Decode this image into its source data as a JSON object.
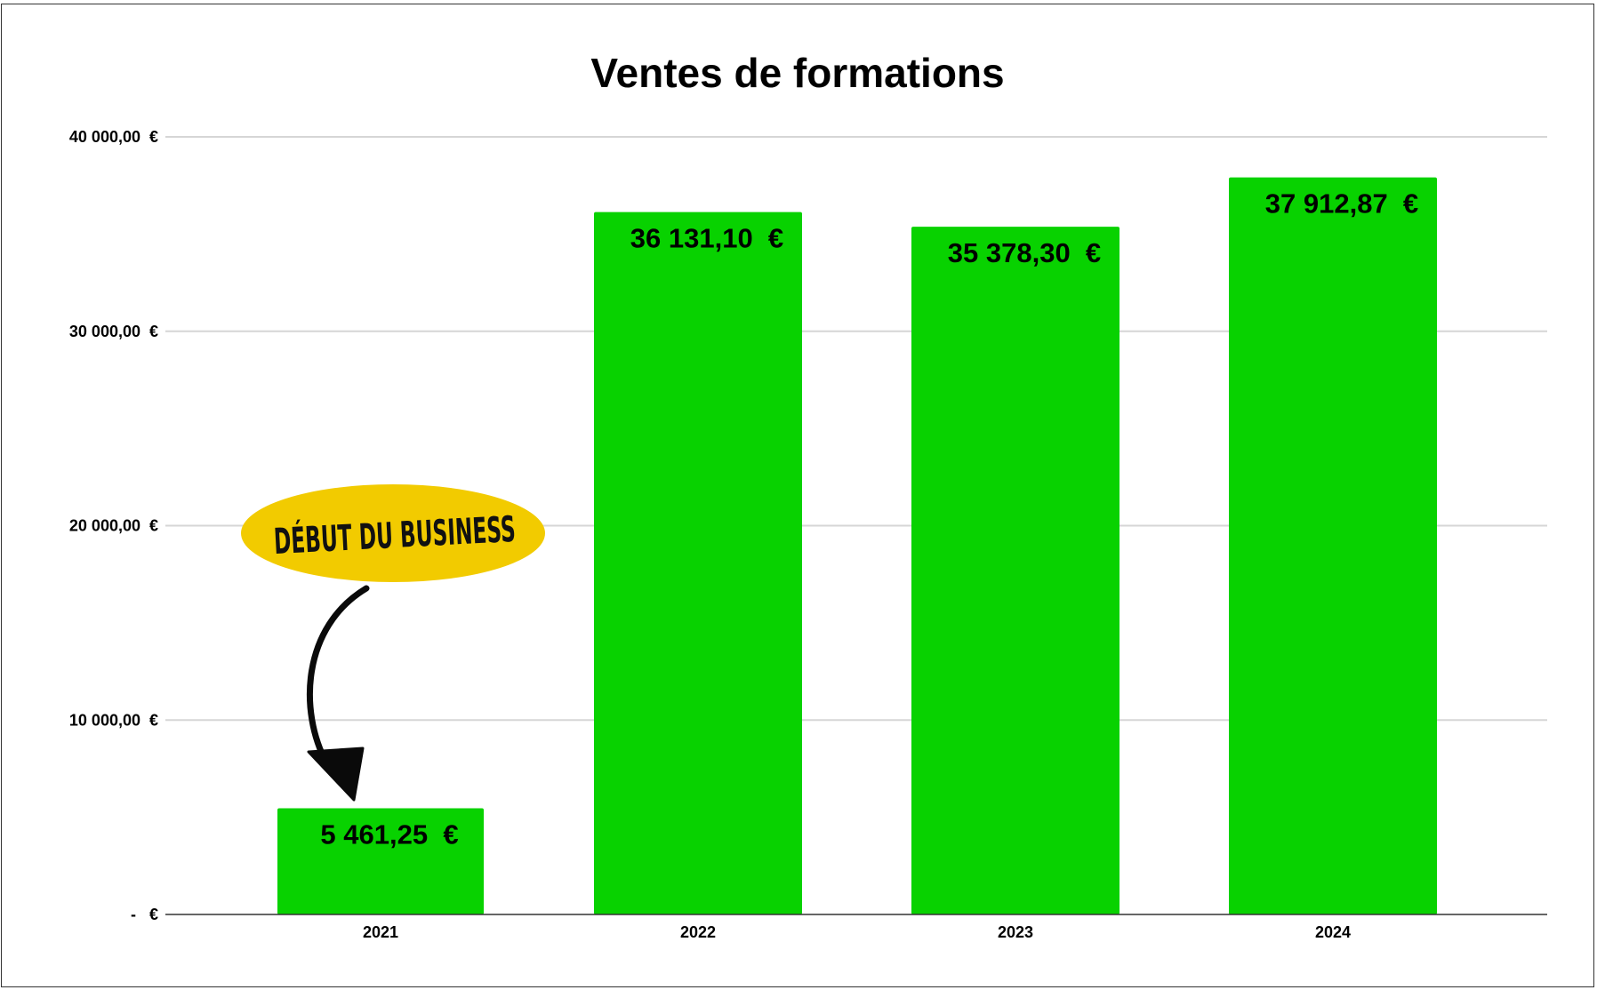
{
  "chart_data": {
    "type": "bar",
    "title": "Ventes de formations",
    "categories": [
      "2021",
      "2022",
      "2023",
      "2024"
    ],
    "values": [
      5461.25,
      36131.1,
      35378.3,
      37912.87
    ],
    "data_labels": [
      "5 461,25  €",
      "36 131,10  €",
      "35 378,30  €",
      "37 912,87  €"
    ],
    "ylim": [
      0,
      40000
    ],
    "yticks": [
      0,
      10000,
      20000,
      30000,
      40000
    ],
    "ytick_labels": [
      "-   €",
      "10 000,00  €",
      "20 000,00  €",
      "30 000,00  €",
      "40 000,00  €"
    ],
    "xlabel": "",
    "ylabel": "",
    "grid": true,
    "legend": "none",
    "bar_color": "#08d200",
    "annotation": {
      "text": "DÉBUT DU BUSINESS",
      "color": "#f2cb00",
      "points_to": "2021"
    }
  }
}
